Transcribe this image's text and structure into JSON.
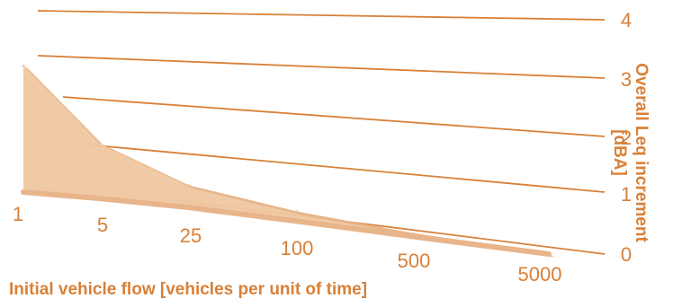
{
  "chart_data": {
    "type": "area",
    "xlabel": "Initial vehicle flow [vehicles per unit of time]",
    "ylabel_line1": "Overall Leq increment",
    "ylabel_line2": "[dBA]",
    "y_ticks": [
      "0",
      "1",
      "2",
      "3",
      "4"
    ],
    "x_ticks": [
      "1",
      "5",
      "25",
      "100",
      "500",
      "5000"
    ],
    "ylim": [
      0,
      4
    ],
    "x": [
      1,
      5,
      25,
      100,
      500,
      5000
    ],
    "series": [
      {
        "values": [
          3.35,
          1.6,
          0.75,
          0.4,
          0.18,
          0.02
        ]
      },
      {
        "values": [
          0.0,
          0.05,
          0.1,
          0.1,
          0.07,
          0.0
        ]
      }
    ],
    "colors": {
      "line": "#d88038",
      "fill": "#efc7a0",
      "upper_edge": "#e8b48a",
      "text": "#d88038"
    },
    "grid": true
  }
}
